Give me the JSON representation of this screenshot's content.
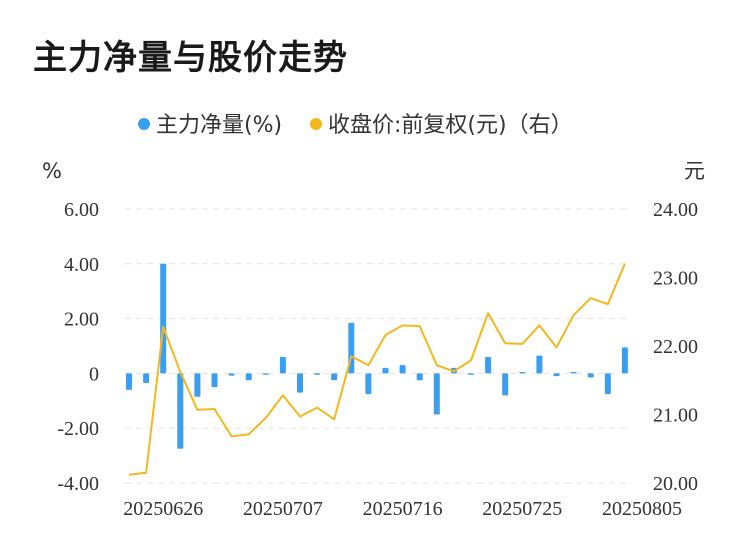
{
  "title": "主力净量与股价走势",
  "chart_data": {
    "type": "bar+line",
    "legend": {
      "position": "top-center",
      "items": [
        {
          "label": "主力净量(%)",
          "color": "#3a9ff0",
          "marker": "circle"
        },
        {
          "label": "收盘价:前复权(元)（右）",
          "color": "#f4b81e",
          "marker": "circle"
        }
      ]
    },
    "left_axis": {
      "unit": "%",
      "ylim": [
        -4,
        6
      ],
      "ticks": [
        6,
        4,
        2,
        0,
        -2,
        -4
      ],
      "tick_labels": [
        "6.00",
        "4.00",
        "2.00",
        "0",
        "-2.00",
        "-4.00"
      ]
    },
    "right_axis": {
      "unit": "元",
      "ylim": [
        20,
        24
      ],
      "ticks": [
        24,
        23,
        22,
        21,
        20
      ],
      "tick_labels": [
        "24.00",
        "23.00",
        "22.00",
        "21.00",
        "20.00"
      ]
    },
    "x_tick_labels": [
      {
        "index": 2,
        "label": "20250626"
      },
      {
        "index": 9,
        "label": "20250707"
      },
      {
        "index": 16,
        "label": "20250716"
      },
      {
        "index": 23,
        "label": "20250725"
      },
      {
        "index": 30,
        "label": "20250805"
      }
    ],
    "grid": {
      "horizontal": true,
      "style": "dashed",
      "vertical": false
    },
    "series": [
      {
        "name": "主力净量(%)",
        "type": "bar",
        "axis": "left",
        "color": "#3a9ff0",
        "values": [
          -0.6,
          -0.35,
          4.0,
          -2.75,
          -0.85,
          -0.5,
          -0.08,
          -0.25,
          -0.05,
          0.6,
          -0.7,
          -0.05,
          -0.25,
          1.85,
          -0.75,
          0.2,
          0.3,
          -0.25,
          -1.5,
          0.2,
          -0.05,
          0.6,
          -0.8,
          0.05,
          0.65,
          -0.1,
          0.05,
          -0.15,
          -0.75,
          0.95
        ]
      },
      {
        "name": "收盘价:前复权(元)（右）",
        "type": "line",
        "axis": "right",
        "color": "#f4b81e",
        "values": [
          20.12,
          20.15,
          22.28,
          21.62,
          21.07,
          21.08,
          20.68,
          20.71,
          20.95,
          21.28,
          20.97,
          21.1,
          20.93,
          21.85,
          21.72,
          22.16,
          22.3,
          22.29,
          21.72,
          21.63,
          21.79,
          22.48,
          22.04,
          22.03,
          22.3,
          21.98,
          22.45,
          22.7,
          22.61,
          23.2
        ]
      }
    ]
  }
}
